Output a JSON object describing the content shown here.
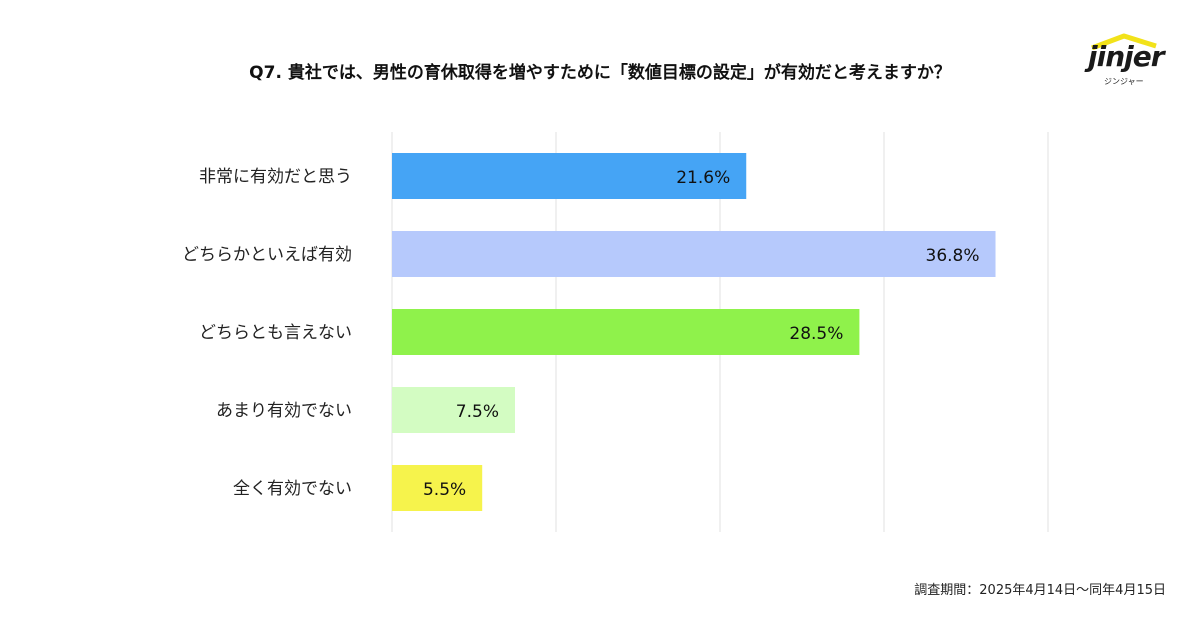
{
  "logo": {
    "text": "jinjer",
    "sub": "ジンジャー"
  },
  "footer": "調査期間：2025年4月14日〜同年4月15日",
  "chart_data": {
    "type": "bar",
    "orientation": "horizontal",
    "title": "Q7. 貴社では、男性の育休取得を増やすために「数値目標の設定」が有効だと考えますか？",
    "categories": [
      "非常に有効だと思う",
      "どちらかといえば有効",
      "どちらとも言えない",
      "あまり有効でない",
      "全く有効でない"
    ],
    "values": [
      21.6,
      36.8,
      28.5,
      7.5,
      5.5
    ],
    "labels": [
      "21.6%",
      "36.8%",
      "28.5%",
      "7.5%",
      "5.5%"
    ],
    "colors": [
      "#45a4f5",
      "#b6c9fc",
      "#8ff24b",
      "#d3fcc2",
      "#f6f34c"
    ],
    "xlim": [
      0,
      40
    ],
    "grid": true,
    "xlabel": "",
    "ylabel": ""
  }
}
